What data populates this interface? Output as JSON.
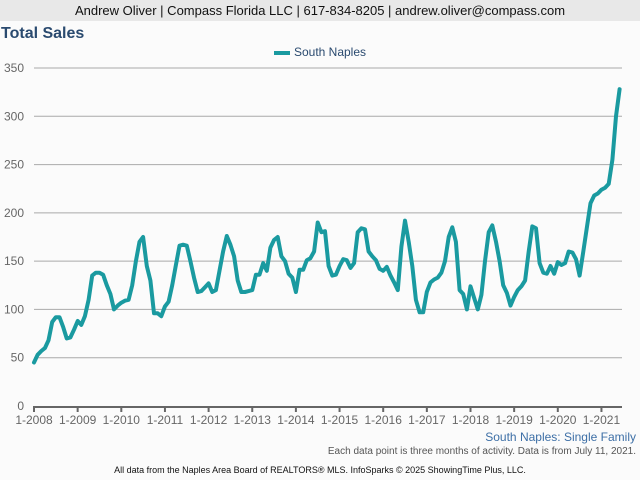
{
  "header": {
    "contact": "Andrew Oliver | Compass Florida LLC | 617-834-8205 | andrew.oliver@compass.com"
  },
  "chart_data": {
    "type": "line",
    "title": "Total Sales",
    "legend": [
      "South Naples"
    ],
    "legend_position": "top-center",
    "ylim": [
      0,
      350
    ],
    "yticks": [
      0,
      50,
      100,
      150,
      200,
      250,
      300,
      350
    ],
    "xticks": [
      "1-2008",
      "1-2009",
      "1-2010",
      "1-2011",
      "1-2012",
      "1-2013",
      "1-2014",
      "1-2015",
      "1-2016",
      "1-2017",
      "1-2018",
      "1-2019",
      "1-2020",
      "1-2021"
    ],
    "grid": true,
    "color": "#1a9aa0",
    "series": [
      {
        "name": "South Naples",
        "start": "1-2008",
        "interval": "month",
        "values": [
          45,
          53,
          57,
          60,
          68,
          87,
          92,
          92,
          82,
          70,
          71,
          79,
          88,
          84,
          93,
          110,
          135,
          138,
          138,
          136,
          125,
          116,
          100,
          104,
          107,
          109,
          110,
          125,
          150,
          170,
          175,
          145,
          130,
          96,
          96,
          93,
          103,
          108,
          125,
          146,
          166,
          167,
          166,
          150,
          133,
          118,
          119,
          123,
          127,
          118,
          120,
          140,
          160,
          176,
          167,
          155,
          130,
          118,
          118,
          119,
          120,
          136,
          136,
          148,
          140,
          164,
          172,
          175,
          155,
          150,
          137,
          133,
          118,
          141,
          141,
          151,
          153,
          160,
          190,
          180,
          181,
          145,
          135,
          136,
          145,
          152,
          151,
          143,
          148,
          180,
          184,
          183,
          160,
          155,
          151,
          142,
          140,
          144,
          135,
          128,
          120,
          165,
          192,
          170,
          145,
          110,
          97,
          97,
          118,
          128,
          131,
          133,
          138,
          150,
          175,
          185,
          170,
          120,
          116,
          100,
          124,
          112,
          100,
          115,
          150,
          180,
          187,
          170,
          150,
          125,
          117,
          104,
          113,
          120,
          124,
          130,
          160,
          186,
          184,
          148,
          138,
          137,
          145,
          137,
          149,
          146,
          148,
          160,
          159,
          152,
          135,
          160,
          185,
          210,
          218,
          220,
          224,
          226,
          230,
          255,
          300,
          328
        ]
      }
    ]
  },
  "footer": {
    "subtitle": "South Naples: Single Family",
    "note": "Each data point is three months of activity. Data is from July 11, 2021.",
    "source": "All data from the Naples Area Board of REALTORS® MLS. InfoSparks © 2025 ShowingTime Plus, LLC."
  }
}
